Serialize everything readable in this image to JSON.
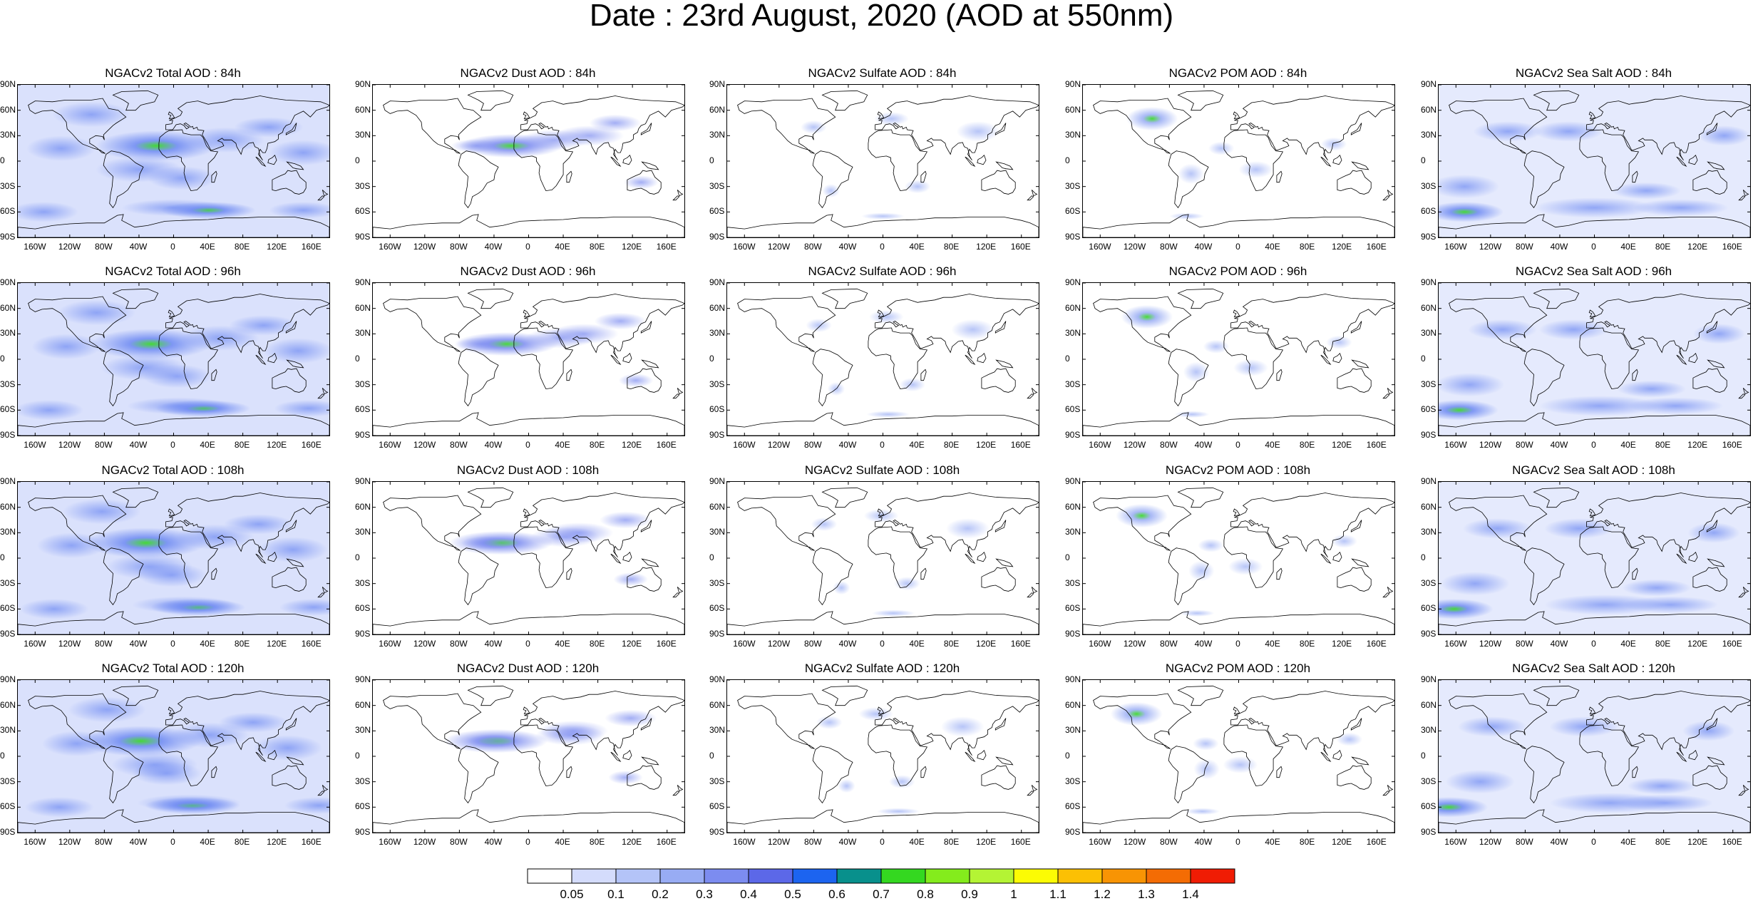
{
  "title": "Date : 23rd August, 2020 (AOD at 550nm)",
  "panel_titles": [
    [
      "NGACv2 Total AOD : 84h",
      "NGACv2 Dust AOD : 84h",
      "NGACv2 Sulfate AOD : 84h",
      "NGACv2 POM AOD : 84h",
      "NGACv2 Sea Salt AOD : 84h"
    ],
    [
      "NGACv2 Total AOD : 96h",
      "NGACv2 Dust AOD : 96h",
      "NGACv2 Sulfate AOD : 96h",
      "NGACv2 POM AOD : 96h",
      "NGACv2 Sea Salt AOD : 96h"
    ],
    [
      "NGACv2 Total AOD : 108h",
      "NGACv2 Dust AOD : 108h",
      "NGACv2 Sulfate AOD : 108h",
      "NGACv2 POM AOD : 108h",
      "NGACv2 Sea Salt AOD : 108h"
    ],
    [
      "NGACv2 Total AOD : 120h",
      "NGACv2 Dust AOD : 120h",
      "NGACv2 Sulfate AOD : 120h",
      "NGACv2 POM AOD : 120h",
      "NGACv2 Sea Salt  AOD : 120h"
    ]
  ],
  "lat_ticks": [
    "90N",
    "60N",
    "30N",
    "0",
    "30S",
    "60S",
    "90S"
  ],
  "lon_ticks": [
    "160W",
    "120W",
    "80W",
    "40W",
    "0",
    "40E",
    "80E",
    "120E",
    "160E"
  ],
  "colorbar": {
    "labels": [
      "0.05",
      "0.1",
      "0.2",
      "0.3",
      "0.4",
      "0.5",
      "0.6",
      "0.7",
      "0.8",
      "0.9",
      "1",
      "1.1",
      "1.2",
      "1.3",
      "1.4"
    ],
    "colors": [
      "#ffffff",
      "#d4dcfc",
      "#b4c4f8",
      "#98acf4",
      "#7c8cf0",
      "#5c68e8",
      "#1c64f0",
      "#08908c",
      "#34d820",
      "#84ec1c",
      "#b4f434",
      "#fcfc04",
      "#fcc004",
      "#f89404",
      "#f46c04",
      "#f01c04"
    ]
  },
  "aerosol_colors": {
    "total": "#6e8af2",
    "dust": "#7c8cf0",
    "sulfate": "#98acf4",
    "pom": "#98acf4",
    "seasalt": "#6e8af2",
    "hotspot_green": "#34d820",
    "hotspot_yellow": "#fcfc04",
    "hotspot_red": "#f01c04",
    "coast": "#000000"
  }
}
